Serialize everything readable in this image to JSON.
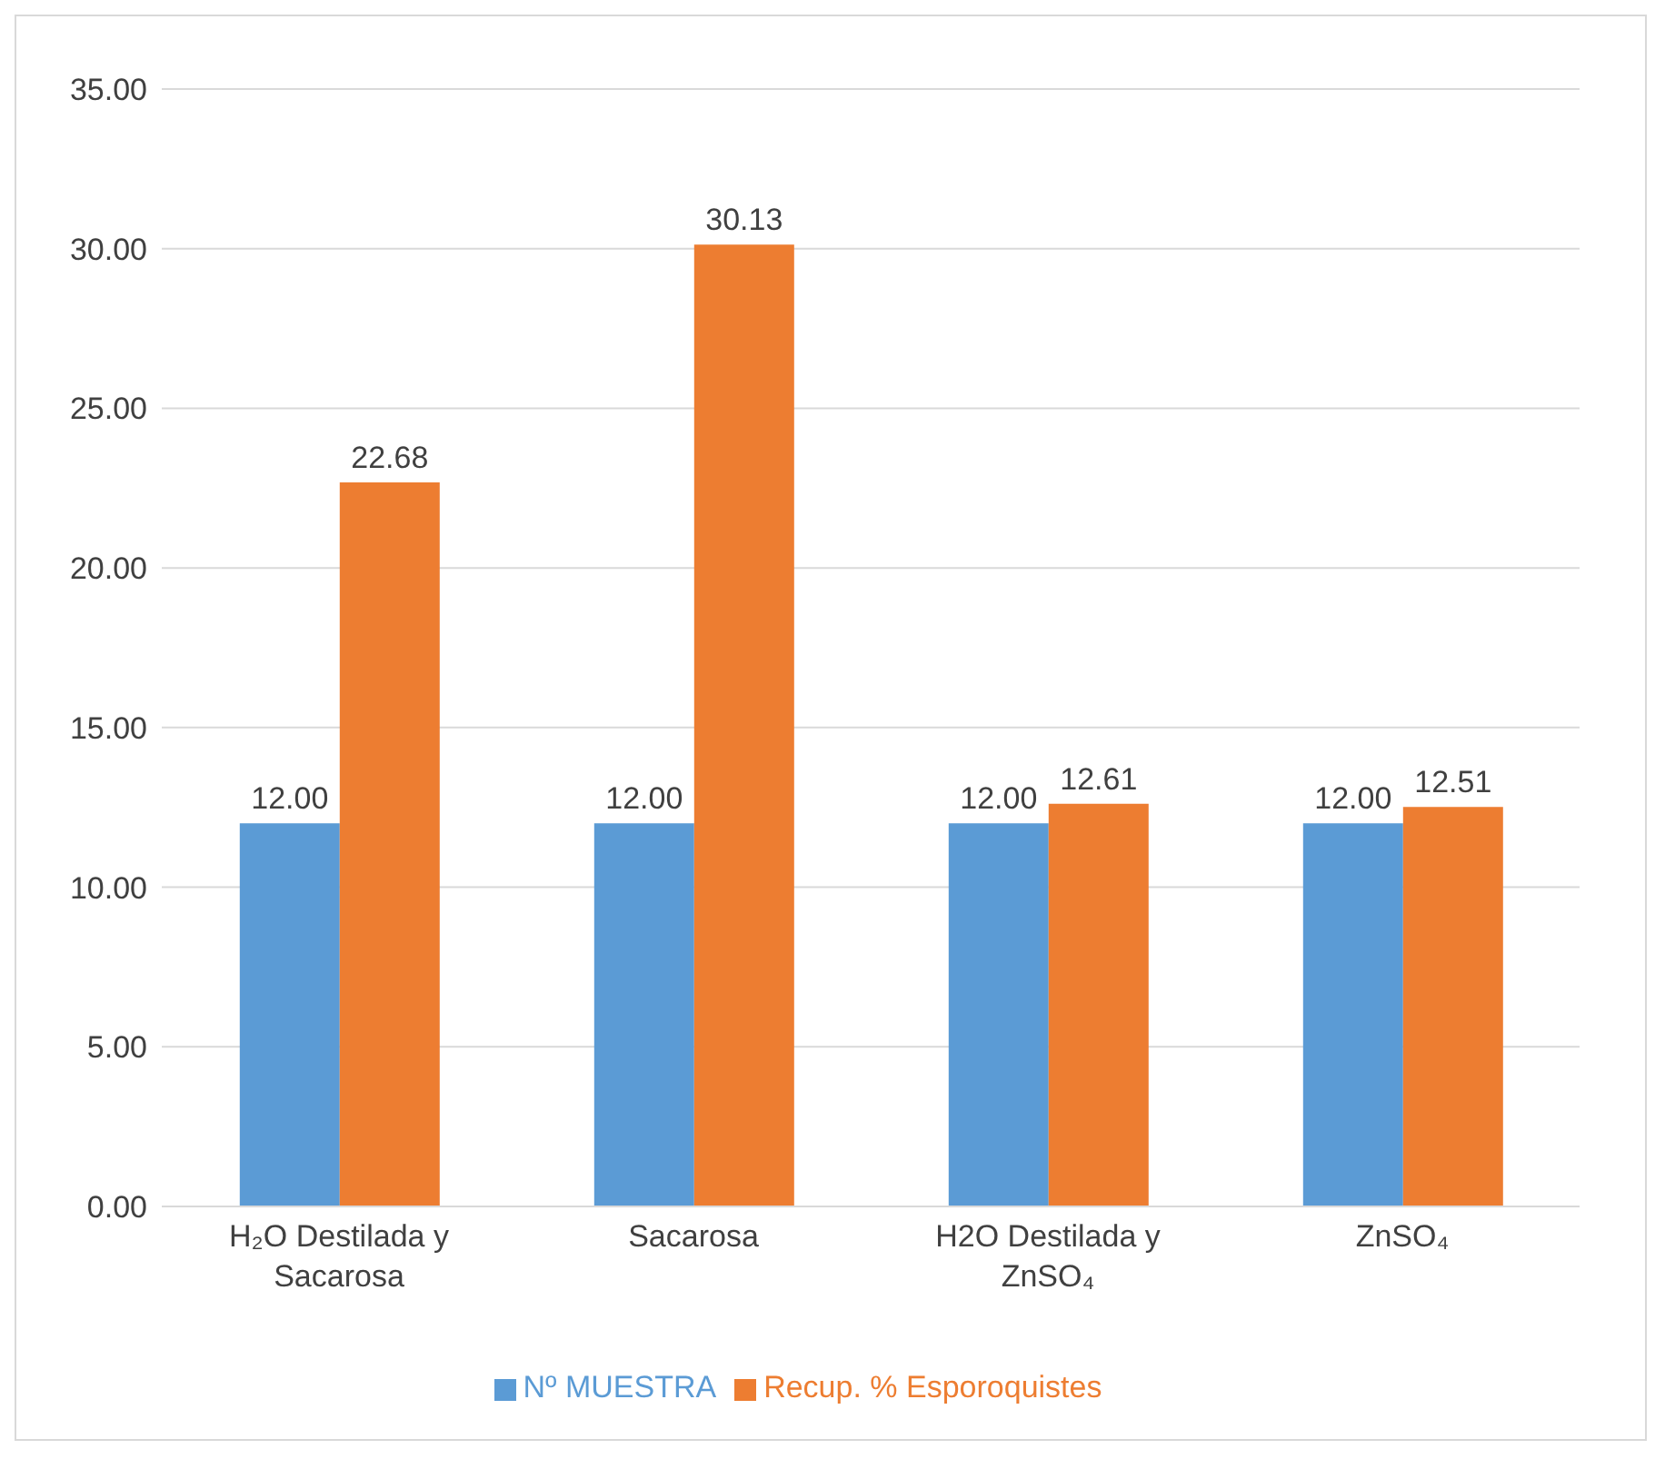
{
  "chart_data": {
    "type": "bar",
    "categories": [
      "H₂O Destilada y Sacarosa",
      "Sacarosa",
      "H2O Destilada y ZnSO₄",
      "ZnSO₄"
    ],
    "series": [
      {
        "name": "Nº MUESTRA",
        "color": "#5b9bd5",
        "values": [
          12,
          12,
          12,
          12
        ],
        "value_labels": [
          "12.00",
          "12.00",
          "12.00",
          "12.00"
        ]
      },
      {
        "name": "Recup. % Esporoquistes",
        "color": "#ed7d31",
        "values": [
          22.68,
          30.13,
          12.61,
          12.51
        ],
        "value_labels": [
          "22.68",
          "30.13",
          "12.61",
          "12.51"
        ]
      }
    ],
    "ylim": [
      0,
      35
    ],
    "yticks": [
      {
        "value": 0,
        "label": "0.00"
      },
      {
        "value": 5,
        "label": "5.00"
      },
      {
        "value": 10,
        "label": "10.00"
      },
      {
        "value": 15,
        "label": "15.00"
      },
      {
        "value": 20,
        "label": "20.00"
      },
      {
        "value": 25,
        "label": "25.00"
      },
      {
        "value": 30,
        "label": "30.00"
      },
      {
        "value": 35,
        "label": "35.00"
      }
    ],
    "grid": "y",
    "legend": "bottom"
  }
}
